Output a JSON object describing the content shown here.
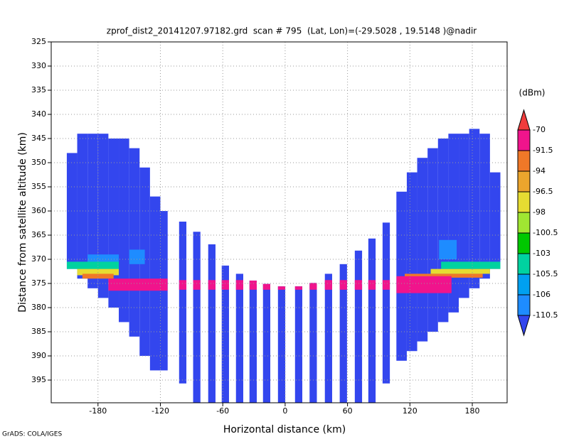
{
  "chart_data": {
    "type": "profile",
    "title": "zprof_dist2_20141207.97182.grd  scan # 795  (Lat, Lon)=(-29.5028 , 19.5148 )@nadir",
    "xlabel": "Horizontal distance (km)",
    "ylabel": "Distance from satellite altitude (km)",
    "footer": "GrADS: COLA/IGES",
    "xlim": [
      -225,
      213.5
    ],
    "ylim": [
      325,
      399.7
    ],
    "y_inverted": true,
    "grid": true,
    "xticks": [
      -180,
      -120,
      -60,
      0,
      60,
      120,
      180
    ],
    "yticks": [
      325,
      330,
      335,
      340,
      345,
      350,
      355,
      360,
      365,
      370,
      375,
      380,
      385,
      390,
      395
    ],
    "colorbar": {
      "unit": "(dBm)",
      "levels": [
        -70,
        -91.5,
        -94,
        -96.5,
        -98,
        -100.5,
        -103,
        -105.5,
        -106,
        -110.5
      ],
      "colors": [
        "#f03c3c",
        "#f0148c",
        "#f07828",
        "#eba52d",
        "#e6dc32",
        "#a0e632",
        "#00c800",
        "#00d2a0",
        "#00a0f0",
        "#1e8cff",
        "#3346ee"
      ]
    },
    "columns": [
      {
        "x0": -210,
        "x1": -200,
        "top": 348,
        "bottom": 372,
        "value": -112
      },
      {
        "x0": -200,
        "x1": -190,
        "top": 344,
        "bottom": 374,
        "value": -112
      },
      {
        "x0": -190,
        "x1": -180,
        "top": 344,
        "bottom": 376,
        "value": -112
      },
      {
        "x0": -180,
        "x1": -170,
        "top": 344,
        "bottom": 378,
        "value": -112
      },
      {
        "x0": -170,
        "x1": -160,
        "top": 345,
        "bottom": 380,
        "value": -112
      },
      {
        "x0": -160,
        "x1": -150,
        "top": 345,
        "bottom": 383,
        "value": -112
      },
      {
        "x0": -150,
        "x1": -140,
        "top": 347,
        "bottom": 386,
        "value": -112
      },
      {
        "x0": -140,
        "x1": -130,
        "top": 351,
        "bottom": 390,
        "value": -112
      },
      {
        "x0": -130,
        "x1": -120,
        "top": 357,
        "bottom": 393,
        "value": -112
      },
      {
        "x0": -120,
        "x1": -113,
        "top": 360,
        "bottom": 393,
        "value": -112
      },
      {
        "x0": -102,
        "x1": -95,
        "top": 362.2,
        "bottom": 395.7,
        "value": -112
      },
      {
        "x0": -88.5,
        "x1": -81.5,
        "top": 364.3,
        "bottom": 399.7,
        "value": -112
      },
      {
        "x0": -74,
        "x1": -67,
        "top": 366.9,
        "bottom": 399.7,
        "value": -112
      },
      {
        "x0": -61,
        "x1": -54,
        "top": 371.3,
        "bottom": 399.7,
        "value": -112
      },
      {
        "x0": -47.3,
        "x1": -40.3,
        "top": 373,
        "bottom": 399.7,
        "value": -112
      },
      {
        "x0": -34.3,
        "x1": -27.3,
        "top": 374.4,
        "bottom": 399.7,
        "value": -112
      },
      {
        "x0": -21.3,
        "x1": -14.3,
        "top": 375.1,
        "bottom": 399.7,
        "value": -112
      },
      {
        "x0": -6.9,
        "x1": 0.1,
        "top": 375.6,
        "bottom": 399.7,
        "value": -112
      },
      {
        "x0": 9.5,
        "x1": 16.5,
        "top": 375.6,
        "bottom": 399.7,
        "value": -112
      },
      {
        "x0": 23.5,
        "x1": 30.5,
        "top": 374.9,
        "bottom": 399.7,
        "value": -112
      },
      {
        "x0": 38.2,
        "x1": 45.2,
        "top": 373,
        "bottom": 399.7,
        "value": -112
      },
      {
        "x0": 52.5,
        "x1": 59.5,
        "top": 371,
        "bottom": 399.7,
        "value": -112
      },
      {
        "x0": 67,
        "x1": 74,
        "top": 368.2,
        "bottom": 399.7,
        "value": -112
      },
      {
        "x0": 80,
        "x1": 87,
        "top": 365.7,
        "bottom": 399.7,
        "value": -112
      },
      {
        "x0": 93.7,
        "x1": 100.7,
        "top": 362.4,
        "bottom": 395.7,
        "value": -112
      },
      {
        "x0": 107,
        "x1": 117,
        "top": 356,
        "bottom": 391,
        "value": -112
      },
      {
        "x0": 117,
        "x1": 127,
        "top": 352,
        "bottom": 389,
        "value": -112
      },
      {
        "x0": 127,
        "x1": 137,
        "top": 349,
        "bottom": 387,
        "value": -112
      },
      {
        "x0": 137,
        "x1": 147,
        "top": 347,
        "bottom": 385,
        "value": -112
      },
      {
        "x0": 147,
        "x1": 157,
        "top": 345,
        "bottom": 383,
        "value": -112
      },
      {
        "x0": 157,
        "x1": 167,
        "top": 344,
        "bottom": 381,
        "value": -112
      },
      {
        "x0": 167,
        "x1": 177,
        "top": 344,
        "bottom": 378,
        "value": -112
      },
      {
        "x0": 177,
        "x1": 187,
        "top": 343,
        "bottom": 376,
        "value": -112
      },
      {
        "x0": 187,
        "x1": 197,
        "top": 344,
        "bottom": 374,
        "value": -112
      },
      {
        "x0": 197,
        "x1": 207,
        "top": 352,
        "bottom": 372,
        "value": -112
      }
    ],
    "bands": [
      {
        "x0": -190,
        "x1": -160,
        "top": 369,
        "bottom": 371,
        "value": -109
      },
      {
        "x0": -150,
        "x1": -135,
        "top": 368,
        "bottom": 371,
        "value": -107
      },
      {
        "x0": 148,
        "x1": 165,
        "top": 366,
        "bottom": 370,
        "value": -107
      },
      {
        "x0": -210,
        "x1": -160,
        "top": 370.5,
        "bottom": 372.5,
        "value": -104
      },
      {
        "x0": -200,
        "x1": -160,
        "top": 372,
        "bottom": 373.3,
        "value": -97
      },
      {
        "x0": -195,
        "x1": -165,
        "top": 373,
        "bottom": 374,
        "value": -93
      },
      {
        "x0": -170,
        "x1": -113,
        "top": 374,
        "bottom": 376.5,
        "value": -80
      },
      {
        "x0": -112,
        "x1": 105,
        "top": 374.3,
        "bottom": 376.3,
        "value": -82
      },
      {
        "x0": 150,
        "x1": 207,
        "top": 370.5,
        "bottom": 372,
        "value": -104
      },
      {
        "x0": 140,
        "x1": 207,
        "top": 372,
        "bottom": 373,
        "value": -97
      },
      {
        "x0": 115,
        "x1": 190,
        "top": 373,
        "bottom": 373.8,
        "value": -93
      },
      {
        "x0": 107,
        "x1": 160,
        "top": 373.5,
        "bottom": 377,
        "value": -80
      }
    ]
  }
}
